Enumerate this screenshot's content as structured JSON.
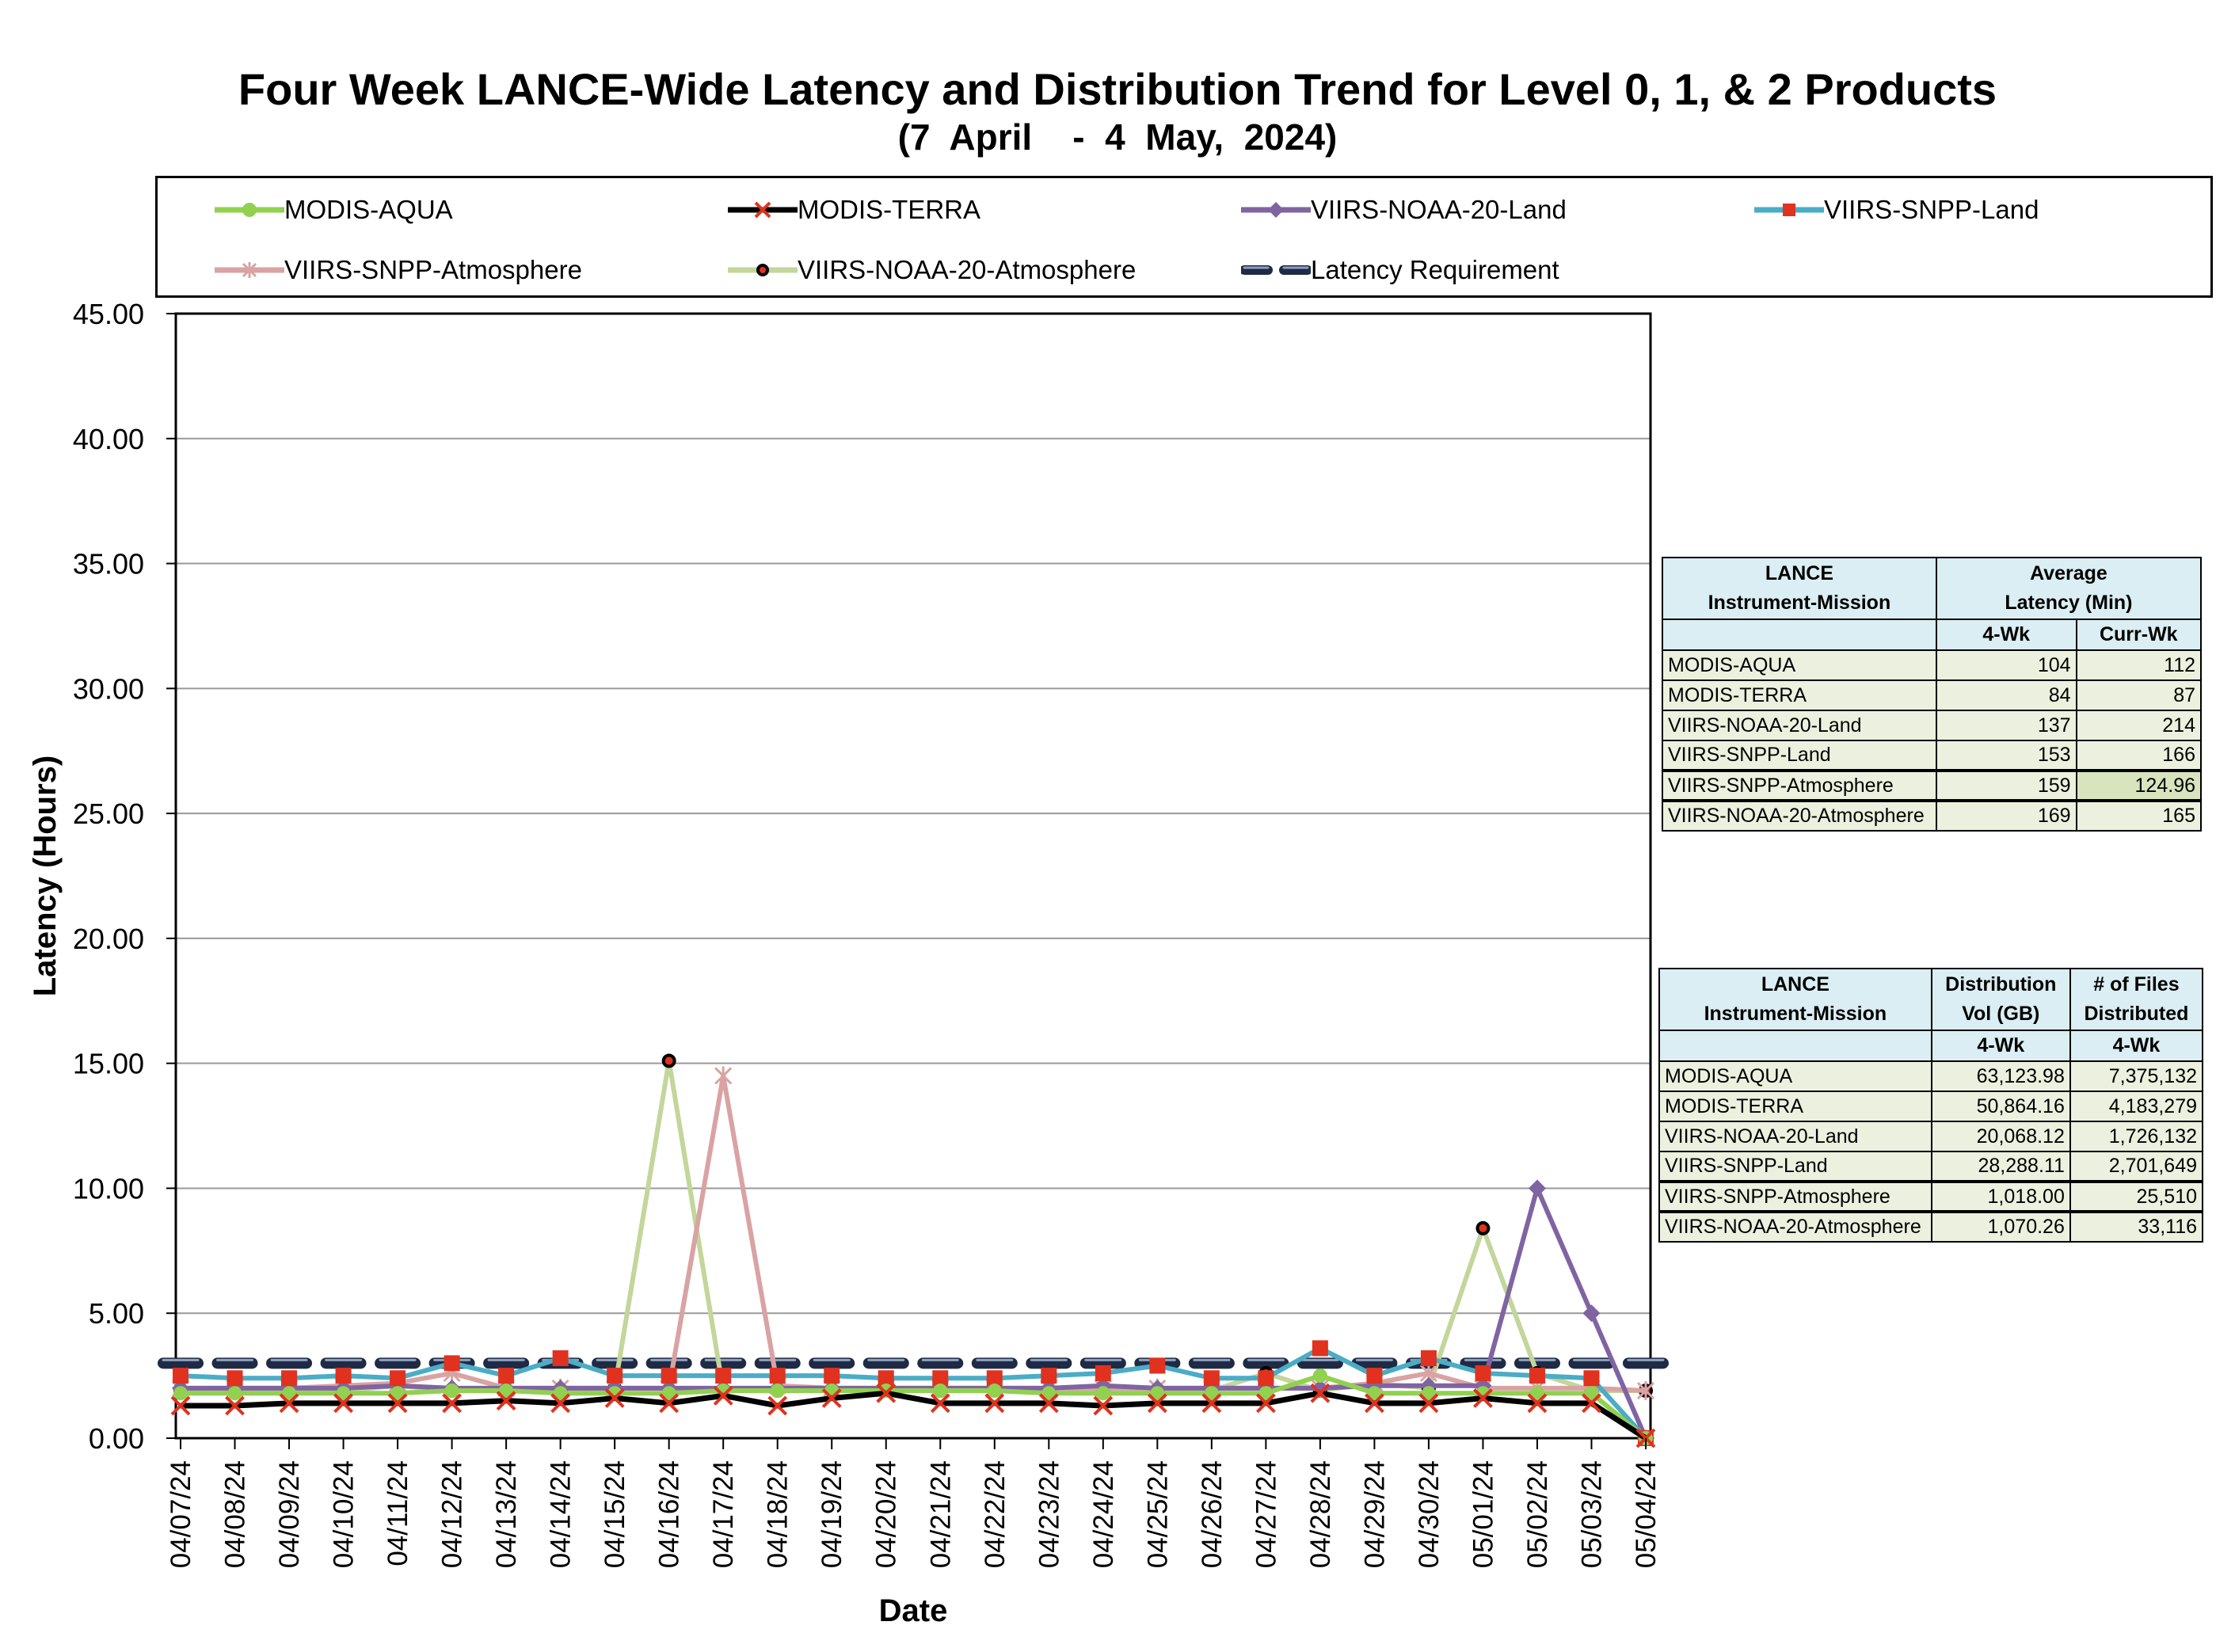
{
  "chart_data": {
    "type": "line",
    "title": "Four Week LANCE-Wide Latency and Distribution Trend for Level 0, 1, & 2 Products",
    "subtitle": "(7  April    -  4  May,  2024)",
    "xlabel": "Date",
    "ylabel": "Latency (Hours)",
    "ylim": [
      0,
      45
    ],
    "yticks": [
      "0.00",
      "5.00",
      "10.00",
      "15.00",
      "20.00",
      "25.00",
      "30.00",
      "35.00",
      "40.00",
      "45.00"
    ],
    "grid": true,
    "legend_position": "top",
    "categories": [
      "04/07/24",
      "04/08/24",
      "04/09/24",
      "04/10/24",
      "04/11/24",
      "04/12/24",
      "04/13/24",
      "04/14/24",
      "04/15/24",
      "04/16/24",
      "04/17/24",
      "04/18/24",
      "04/19/24",
      "04/20/24",
      "04/21/24",
      "04/22/24",
      "04/23/24",
      "04/24/24",
      "04/25/24",
      "04/26/24",
      "04/27/24",
      "04/28/24",
      "04/29/24",
      "04/30/24",
      "05/01/24",
      "05/02/24",
      "05/03/24",
      "05/04/24"
    ],
    "series": [
      {
        "name": "MODIS-AQUA",
        "color": "#92d050",
        "marker": "circle",
        "values": [
          1.8,
          1.8,
          1.8,
          1.8,
          1.8,
          1.9,
          1.9,
          1.8,
          1.8,
          1.8,
          1.9,
          1.9,
          1.9,
          1.9,
          1.9,
          1.9,
          1.8,
          1.8,
          1.8,
          1.8,
          1.8,
          2.5,
          1.8,
          1.8,
          1.8,
          1.8,
          1.8,
          0.0
        ]
      },
      {
        "name": "MODIS-TERRA",
        "color": "#000000",
        "marker": "x",
        "values": [
          1.3,
          1.3,
          1.4,
          1.4,
          1.4,
          1.4,
          1.5,
          1.4,
          1.6,
          1.4,
          1.7,
          1.3,
          1.6,
          1.8,
          1.4,
          1.4,
          1.4,
          1.3,
          1.4,
          1.4,
          1.4,
          1.8,
          1.4,
          1.4,
          1.6,
          1.4,
          1.4,
          0.0
        ]
      },
      {
        "name": "VIIRS-NOAA-20-Land",
        "color": "#8064a2",
        "marker": "diamond",
        "values": [
          2.0,
          2.0,
          2.0,
          2.0,
          2.1,
          2.0,
          2.0,
          2.0,
          2.0,
          2.0,
          2.0,
          2.0,
          2.0,
          2.0,
          2.0,
          2.0,
          2.0,
          2.1,
          2.0,
          2.0,
          2.0,
          2.0,
          2.1,
          2.1,
          2.1,
          10.0,
          5.0,
          0.0
        ]
      },
      {
        "name": "VIIRS-SNPP-Land",
        "color": "#4bacc6",
        "marker": "square",
        "values": [
          2.5,
          2.4,
          2.4,
          2.5,
          2.4,
          3.0,
          2.5,
          3.2,
          2.5,
          2.5,
          2.5,
          2.5,
          2.5,
          2.4,
          2.4,
          2.4,
          2.5,
          2.6,
          2.9,
          2.4,
          2.4,
          3.6,
          2.5,
          3.2,
          2.6,
          2.5,
          2.4,
          0.0
        ]
      },
      {
        "name": "VIIRS-SNPP-Atmosphere",
        "color": "#d9a3a3",
        "marker": "star",
        "values": [
          2.0,
          2.0,
          2.0,
          2.1,
          2.2,
          2.6,
          2.0,
          2.0,
          2.0,
          2.0,
          14.5,
          2.1,
          2.0,
          2.0,
          2.0,
          2.0,
          2.0,
          2.0,
          2.0,
          2.0,
          2.0,
          2.0,
          2.2,
          2.6,
          2.0,
          2.0,
          2.0,
          1.9
        ]
      },
      {
        "name": "VIIRS-NOAA-20-Atmosphere",
        "color": "#c3d69b",
        "marker": "dot",
        "values": [
          1.9,
          1.9,
          2.0,
          1.9,
          2.1,
          1.9,
          1.9,
          1.9,
          2.0,
          15.1,
          1.9,
          1.9,
          1.9,
          1.9,
          1.9,
          2.0,
          1.9,
          1.9,
          1.9,
          1.9,
          2.6,
          1.9,
          2.2,
          2.0,
          8.4,
          2.6,
          1.9,
          1.9
        ]
      },
      {
        "name": "Latency Requirement",
        "color": "#1f2a44",
        "marker": "dash",
        "values": [
          3,
          3,
          3,
          3,
          3,
          3,
          3,
          3,
          3,
          3,
          3,
          3,
          3,
          3,
          3,
          3,
          3,
          3,
          3,
          3,
          3,
          3,
          3,
          3,
          3,
          3,
          3,
          3
        ]
      }
    ]
  },
  "latency_table": {
    "head_col1": [
      "LANCE",
      "Instrument-Mission"
    ],
    "head_col2": [
      "Average",
      "Latency (Min)"
    ],
    "sub_4wk": "4-Wk",
    "sub_currwk": "Curr-Wk",
    "rows": [
      {
        "name": "MODIS-AQUA",
        "wk4": "104",
        "curr": "112"
      },
      {
        "name": "MODIS-TERRA",
        "wk4": "84",
        "curr": "87"
      },
      {
        "name": "VIIRS-NOAA-20-Land",
        "wk4": "137",
        "curr": "214"
      },
      {
        "name": "VIIRS-SNPP-Land",
        "wk4": "153",
        "curr": "166"
      },
      {
        "name": "VIIRS-SNPP-Atmosphere",
        "wk4": "159",
        "curr": "124.96"
      },
      {
        "name": "VIIRS-NOAA-20-Atmosphere",
        "wk4": "169",
        "curr": "165"
      }
    ]
  },
  "distribution_table": {
    "head_col1": [
      "LANCE",
      "Instrument-Mission"
    ],
    "head_col2": [
      "Distribution",
      "Vol (GB)"
    ],
    "head_col3": [
      "# of Files",
      "Distributed"
    ],
    "sub_vol": "4-Wk",
    "sub_files": "4-Wk",
    "rows": [
      {
        "name": "MODIS-AQUA",
        "vol": "63,123.98",
        "files": "7,375,132"
      },
      {
        "name": "MODIS-TERRA",
        "vol": "50,864.16",
        "files": "4,183,279"
      },
      {
        "name": "VIIRS-NOAA-20-Land",
        "vol": "20,068.12",
        "files": "1,726,132"
      },
      {
        "name": "VIIRS-SNPP-Land",
        "vol": "28,288.11",
        "files": "2,701,649"
      },
      {
        "name": "VIIRS-SNPP-Atmosphere",
        "vol": "1,018.00",
        "files": "25,510"
      },
      {
        "name": "VIIRS-NOAA-20-Atmosphere",
        "vol": "1,070.26",
        "files": "33,116"
      }
    ]
  }
}
